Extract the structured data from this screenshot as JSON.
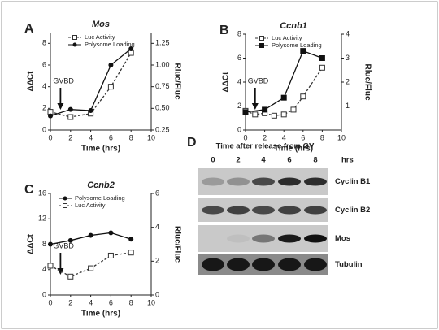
{
  "chart_data": [
    {
      "type": "line",
      "panel": "A",
      "title": "Mos",
      "xlabel": "Time (hrs)",
      "ylabel": "ΔΔCt",
      "y2label": "Rluc/Fluc",
      "annotation": "GVBD",
      "xlim": [
        0,
        10
      ],
      "xticks": [
        0,
        2,
        4,
        6,
        8,
        10
      ],
      "ylim": [
        0,
        9
      ],
      "yticks": [
        0,
        2,
        4,
        6,
        8
      ],
      "y2lim": [
        0.25,
        1.375
      ],
      "y2ticks": [
        0.25,
        {
          "value": 0.5,
          "label": "0.50"
        },
        0.75,
        {
          "value": 1,
          "label": "1.00"
        },
        1.25
      ],
      "series": [
        {
          "name": "Luc Activity",
          "color": "#333333",
          "marker": "open-square",
          "dash": true,
          "axis": "y2",
          "x": [
            0,
            2,
            4,
            6,
            8
          ],
          "values": [
            0.46,
            0.4,
            0.44,
            0.75,
            1.14
          ]
        },
        {
          "name": "Polysome Loading",
          "color": "#111111",
          "marker": "circle",
          "dash": false,
          "axis": "y",
          "x": [
            0,
            2,
            4,
            6,
            8
          ],
          "values": [
            1.3,
            1.9,
            1.8,
            6.0,
            7.5
          ]
        }
      ]
    },
    {
      "type": "line",
      "panel": "B",
      "title": "Ccnb1",
      "xlabel": "Time (hrs)",
      "ylabel": "ΔΔCt",
      "y2label": "Rluc/Fluc",
      "annotation": "GVBD",
      "xlim": [
        0,
        10
      ],
      "xticks": [
        0,
        2,
        4,
        6,
        8,
        10
      ],
      "ylim": [
        0,
        8
      ],
      "yticks": [
        0,
        2,
        4,
        6,
        8
      ],
      "y2lim": [
        0,
        4
      ],
      "y2ticks": [
        1,
        2,
        3,
        4
      ],
      "series": [
        {
          "name": "Luc Activity",
          "color": "#333333",
          "marker": "open-square",
          "dash": true,
          "axis": "y2",
          "x": [
            0,
            1,
            2,
            3,
            4,
            5,
            6,
            8
          ],
          "values": [
            0.8,
            0.65,
            0.7,
            0.6,
            0.65,
            0.85,
            1.4,
            2.6
          ]
        },
        {
          "name": "Polysome Loading",
          "color": "#111111",
          "marker": "square",
          "dash": false,
          "axis": "y",
          "x": [
            0,
            2,
            4,
            6,
            8
          ],
          "values": [
            1.5,
            1.7,
            2.7,
            6.6,
            6.0
          ]
        }
      ]
    },
    {
      "type": "line",
      "panel": "C",
      "title": "Ccnb2",
      "xlabel": "Time (hrs)",
      "ylabel": "ΔΔCt",
      "y2label": "Rluc/Fluc",
      "annotation": "GVBD",
      "xlim": [
        0,
        10
      ],
      "xticks": [
        0,
        2,
        4,
        6,
        8,
        10
      ],
      "ylim": [
        0,
        16
      ],
      "yticks": [
        0,
        4,
        8,
        12,
        16
      ],
      "y2lim": [
        0,
        6
      ],
      "y2ticks": [
        0,
        2,
        4,
        6
      ],
      "series": [
        {
          "name": "Polysome Loading",
          "color": "#111111",
          "marker": "circle",
          "dash": false,
          "axis": "y",
          "x": [
            0,
            2,
            4,
            6,
            8
          ],
          "values": [
            8.0,
            8.6,
            9.4,
            9.8,
            8.8
          ]
        },
        {
          "name": "Luc Activity",
          "color": "#333333",
          "marker": "open-square",
          "dash": true,
          "axis": "y2",
          "x": [
            0,
            2,
            4,
            6,
            8
          ],
          "values": [
            1.73,
            1.09,
            1.58,
            2.33,
            2.51
          ]
        }
      ]
    }
  ],
  "blot": {
    "panel": "D",
    "header": "Time after release from GV",
    "unit": "hrs",
    "lanes": [
      "0",
      "2",
      "4",
      "6",
      "8"
    ],
    "rows": [
      "Cyclin B1",
      "Cyclin B2",
      "Mos",
      "Tubulin"
    ]
  }
}
